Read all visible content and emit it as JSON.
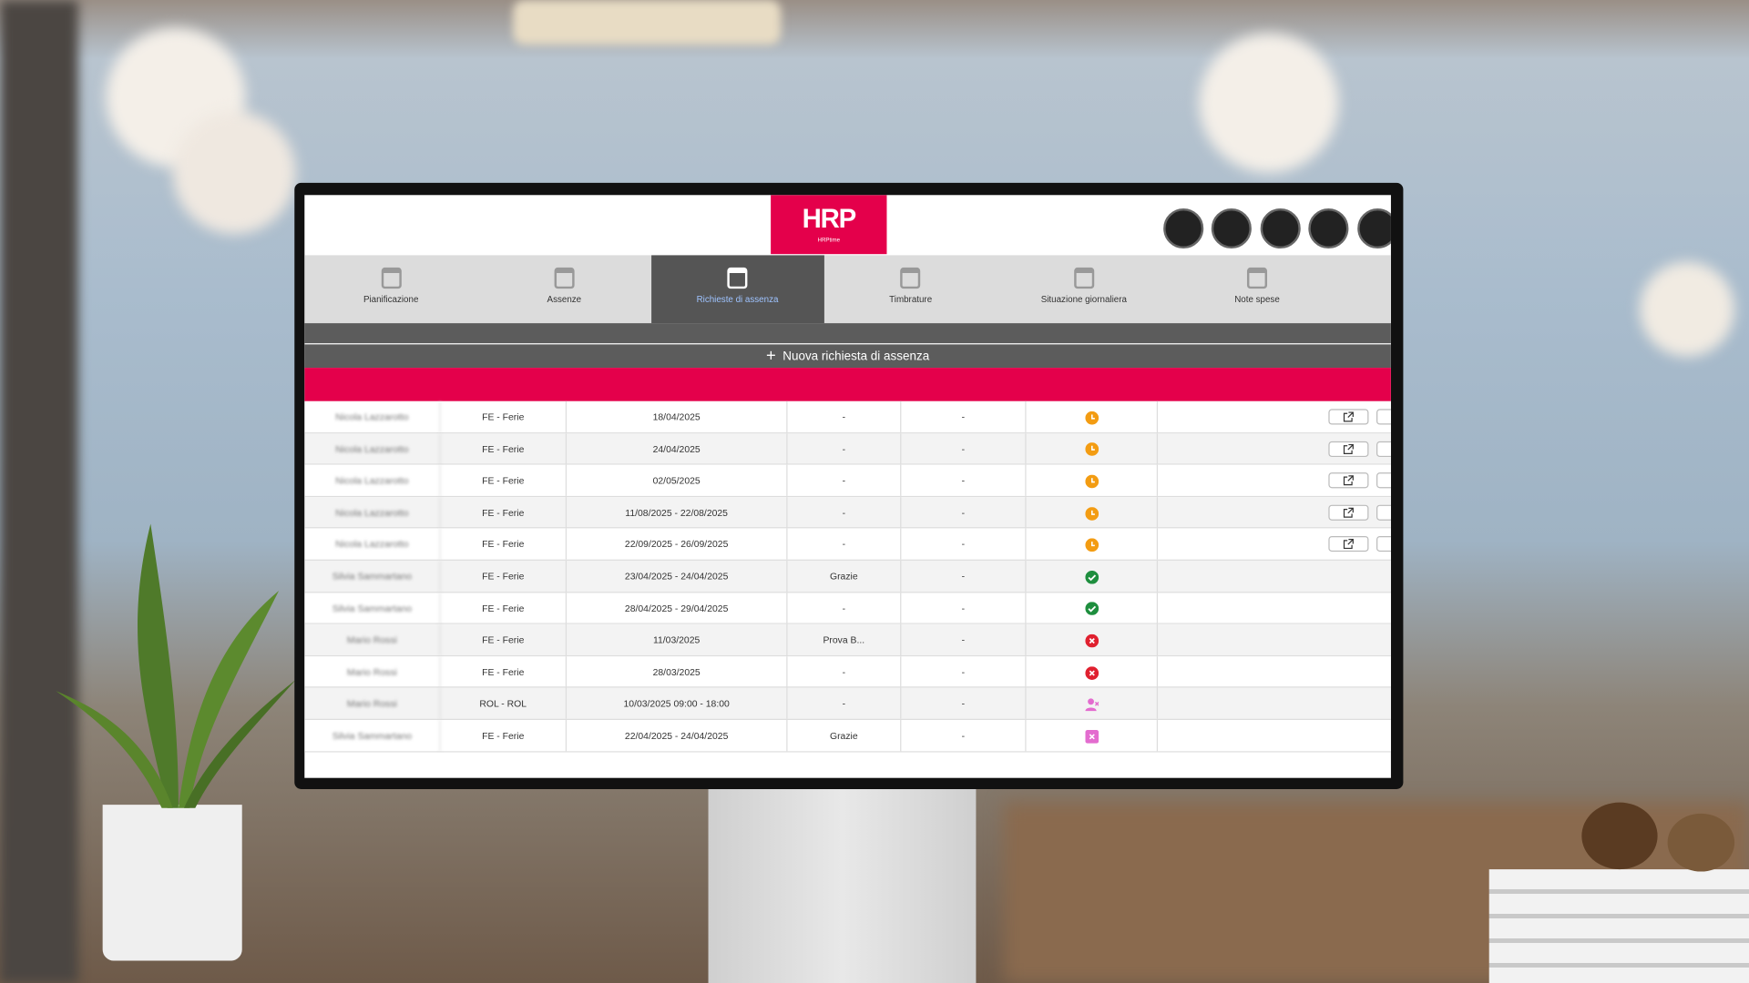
{
  "logo": {
    "title": "HRP",
    "subtitle": "HRPtime"
  },
  "nav": [
    "Pianificazione",
    "Assenze",
    "Richieste di assenza",
    "Timbrature",
    "Situazione giornaliera",
    "Note spese"
  ],
  "active_tab": 2,
  "new_button": "Nuova richiesta di assenza",
  "table": {
    "rows": [
      {
        "name": "Nicola Lazzarotto",
        "type": "FE - Ferie",
        "date": "18/04/2025",
        "note": "-",
        "extra": "-",
        "status": "pending",
        "actions": true
      },
      {
        "name": "Nicola Lazzarotto",
        "type": "FE - Ferie",
        "date": "24/04/2025",
        "note": "-",
        "extra": "-",
        "status": "pending",
        "actions": true
      },
      {
        "name": "Nicola Lazzarotto",
        "type": "FE - Ferie",
        "date": "02/05/2025",
        "note": "-",
        "extra": "-",
        "status": "pending",
        "actions": true
      },
      {
        "name": "Nicola Lazzarotto",
        "type": "FE - Ferie",
        "date": "11/08/2025 - 22/08/2025",
        "note": "-",
        "extra": "-",
        "status": "pending",
        "actions": true
      },
      {
        "name": "Nicola Lazzarotto",
        "type": "FE - Ferie",
        "date": "22/09/2025 - 26/09/2025",
        "note": "-",
        "extra": "-",
        "status": "pending",
        "actions": true
      },
      {
        "name": "Silvia Sammartano",
        "type": "FE - Ferie",
        "date": "23/04/2025 - 24/04/2025",
        "note": "Grazie",
        "extra": "-",
        "status": "approved",
        "actions": false
      },
      {
        "name": "Silvia Sammartano",
        "type": "FE - Ferie",
        "date": "28/04/2025 - 29/04/2025",
        "note": "-",
        "extra": "-",
        "status": "approved",
        "actions": false
      },
      {
        "name": "Mario Rossi",
        "type": "FE - Ferie",
        "date": "11/03/2025",
        "note": "Prova B...",
        "extra": "-",
        "status": "rejected",
        "actions": false
      },
      {
        "name": "Mario Rossi",
        "type": "FE - Ferie",
        "date": "28/03/2025",
        "note": "-",
        "extra": "-",
        "status": "rejected",
        "actions": false
      },
      {
        "name": "Mario Rossi",
        "type": "ROL - ROL",
        "date": "10/03/2025 09:00 - 18:00",
        "note": "-",
        "extra": "-",
        "status": "user-cancelled",
        "actions": false
      },
      {
        "name": "Silvia Sammartano",
        "type": "FE - Ferie",
        "date": "22/04/2025 - 24/04/2025",
        "note": "Grazie",
        "extra": "-",
        "status": "cancelled",
        "actions": false
      }
    ]
  }
}
